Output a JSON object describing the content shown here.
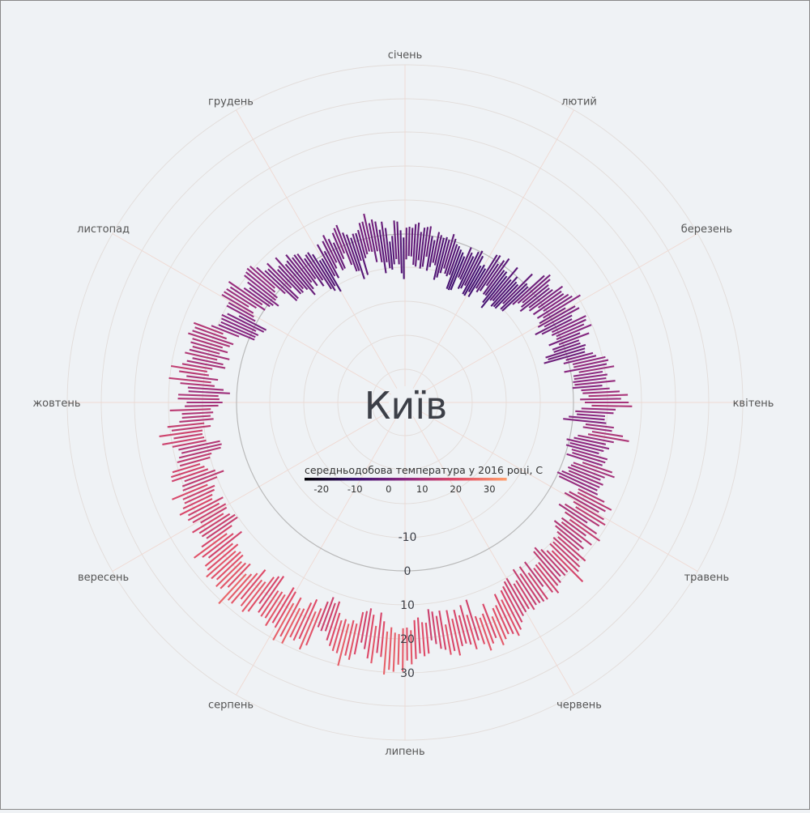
{
  "title": "Київ",
  "legend": {
    "title": "середньодобова температура у 2016 році, С",
    "ticks": [
      "-20",
      "-10",
      "0",
      "10",
      "20",
      "30"
    ],
    "color_stops": [
      "#000004",
      "#3b0f70",
      "#8c2981",
      "#de4968",
      "#fe9f6d"
    ]
  },
  "months": [
    "січень",
    "лютий",
    "березень",
    "квітень",
    "травень",
    "червень",
    "липень",
    "серпень",
    "вересень",
    "жовтень",
    "листопад",
    "грудень"
  ],
  "radial_ticks": [
    "-10",
    "0",
    "10",
    "20",
    "30"
  ],
  "chart_data": {
    "type": "radial-bar",
    "title": "Київ",
    "legend_title": "середньодобова температура у 2016 році, С",
    "angular_categories": [
      "січень",
      "лютий",
      "березень",
      "квітень",
      "травень",
      "червень",
      "липень",
      "серпень",
      "вересень",
      "жовтень",
      "листопад",
      "грудень"
    ],
    "radial_ticks": [
      -10,
      0,
      10,
      20,
      30
    ],
    "color_range": [
      -25,
      35
    ],
    "year": 2016,
    "monthly_mean_temperature": [
      -6,
      -1,
      4,
      10,
      15,
      19,
      22,
      21,
      15,
      8,
      2,
      -3
    ],
    "daily_temperature_spread": 8
  }
}
